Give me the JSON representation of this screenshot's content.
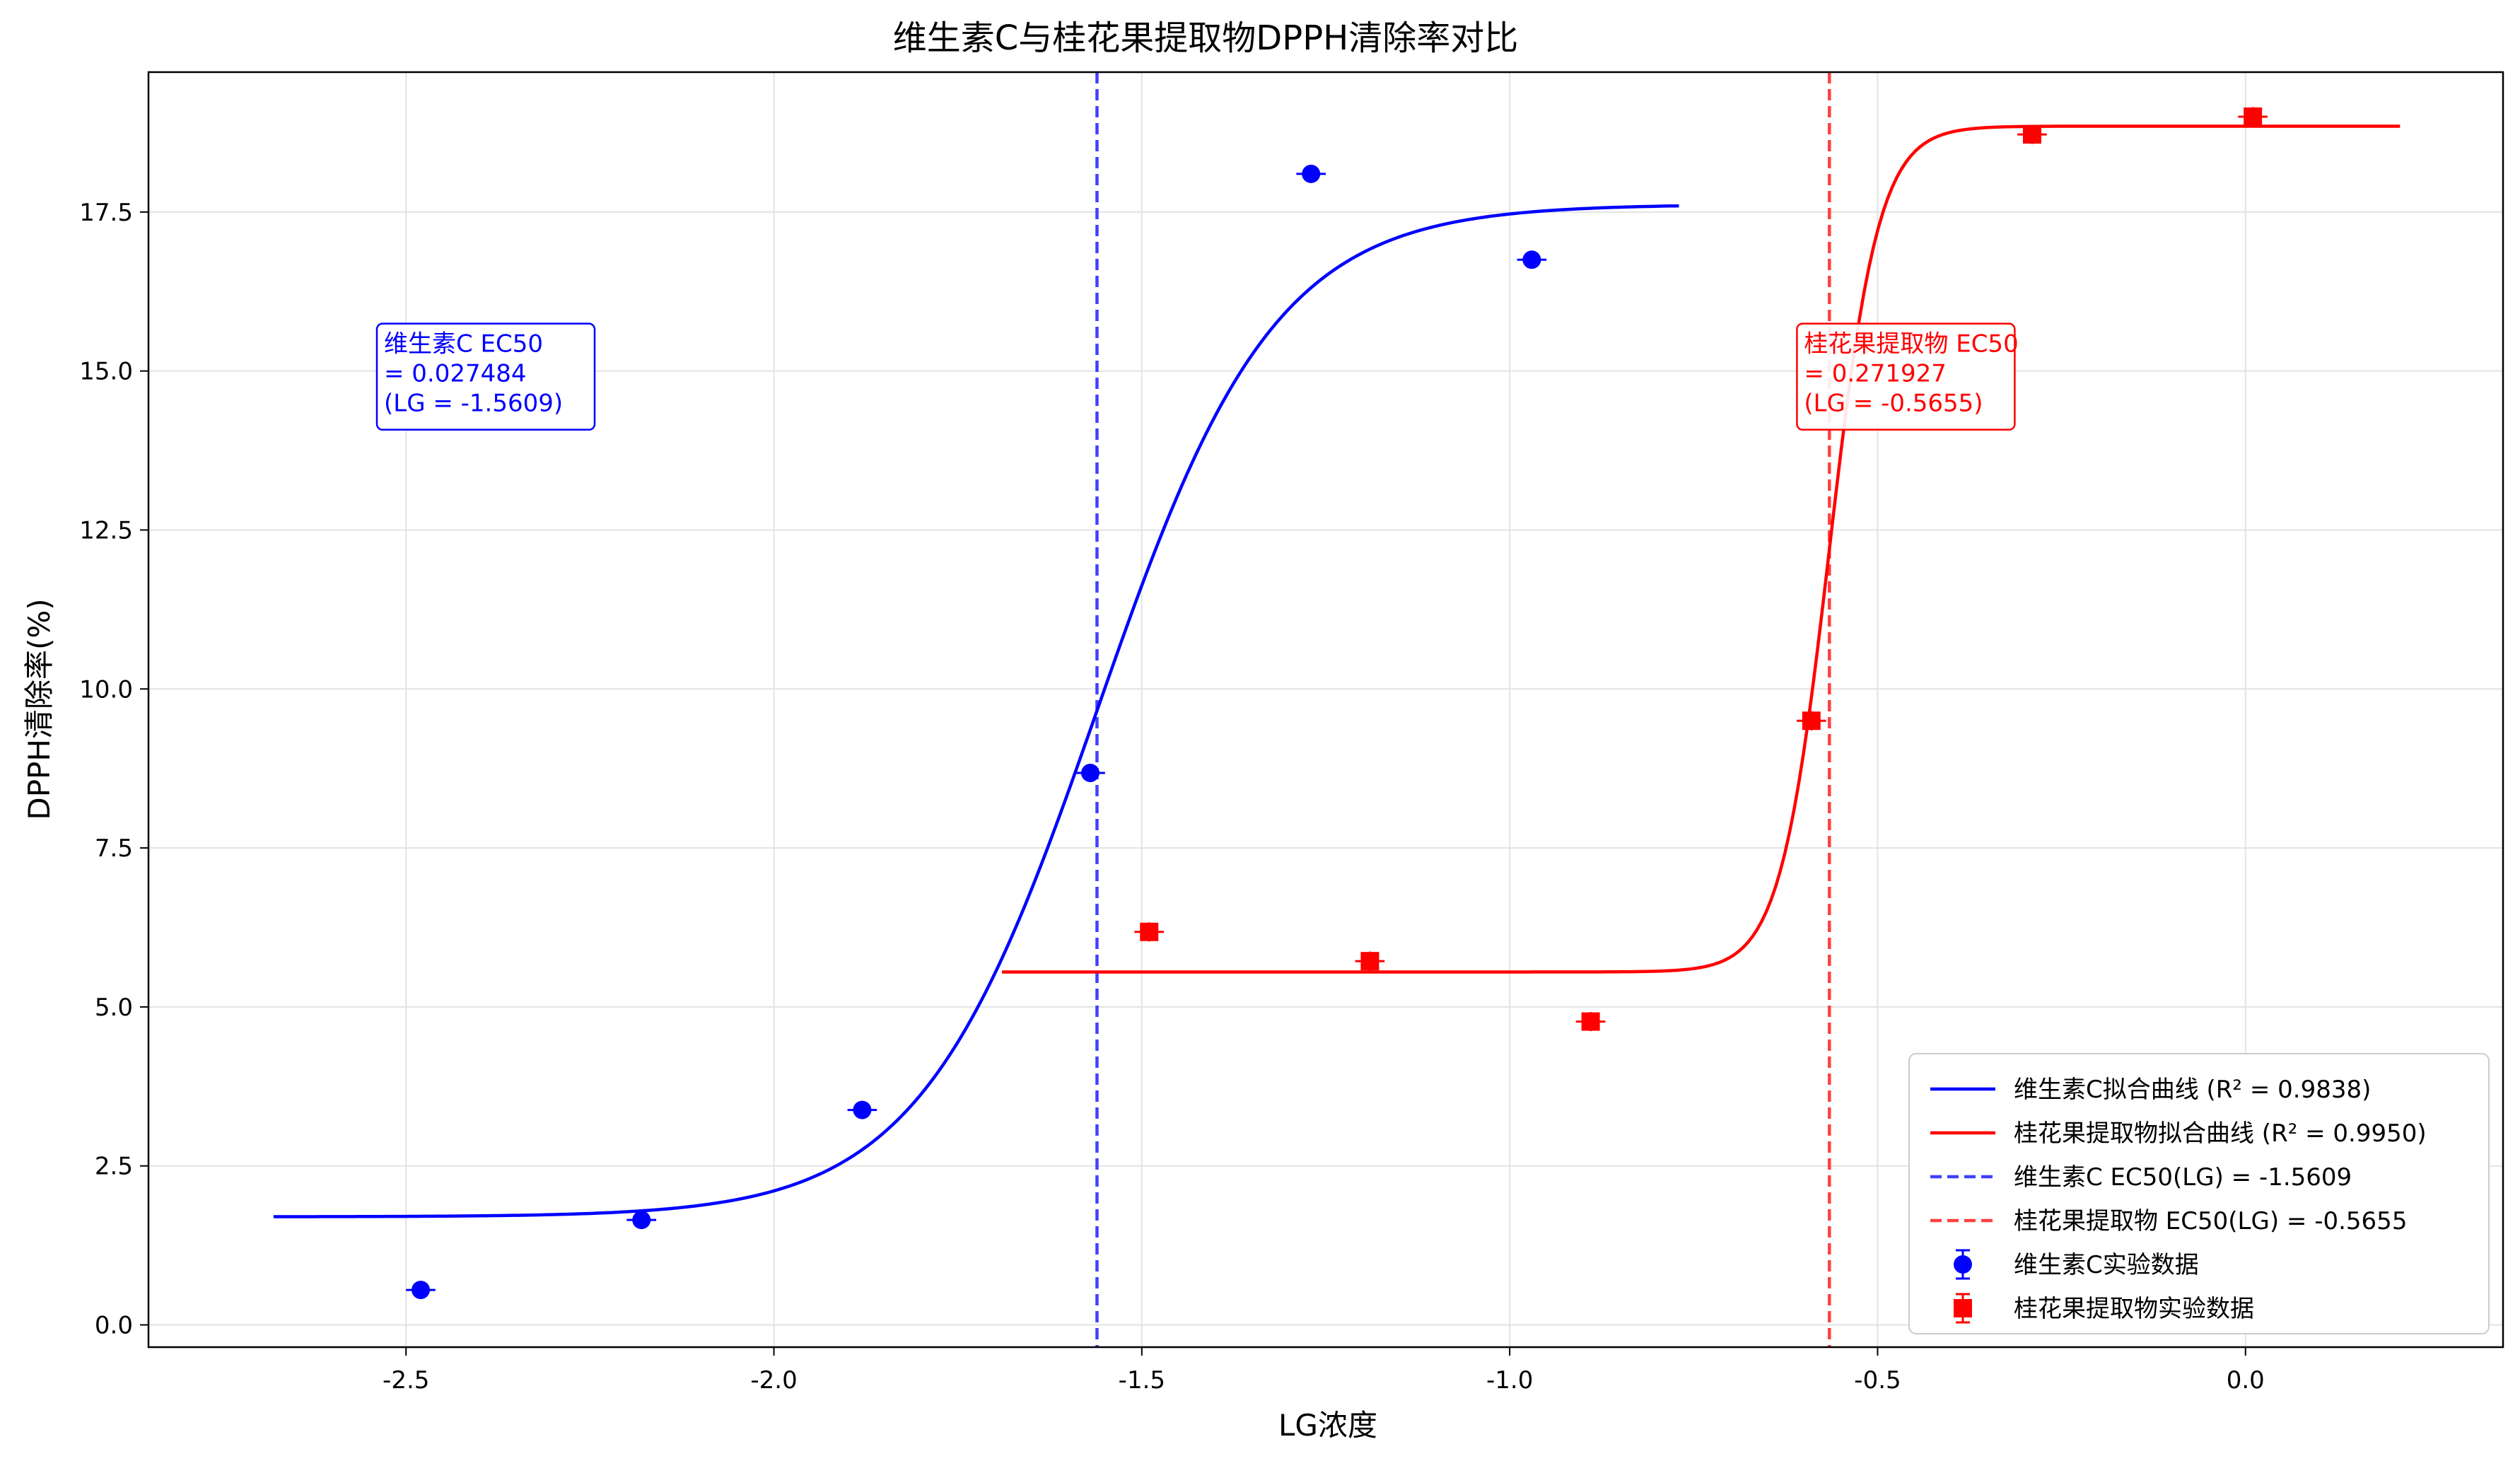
{
  "chart_data": {
    "type": "scatter",
    "title": "维生素C与桂花果提取物DPPH清除率对比",
    "xlabel": "LG浓度",
    "ylabel": "DPPH清除率(%)",
    "xlim": [
      -2.85,
      0.35
    ],
    "ylim": [
      -0.35,
      19.7
    ],
    "xticks": [
      -2.5,
      -2.0,
      -1.5,
      -1.0,
      -0.5,
      0.0
    ],
    "xtick_labels": [
      "-2.5",
      "-2.0",
      "-1.5",
      "-1.0",
      "-0.5",
      "0.0"
    ],
    "yticks": [
      0.0,
      2.5,
      5.0,
      7.5,
      10.0,
      12.5,
      15.0,
      17.5
    ],
    "ytick_labels": [
      "0.0",
      "2.5",
      "5.0",
      "7.5",
      "10.0",
      "12.5",
      "15.0",
      "17.5"
    ],
    "grid": true,
    "legend_position": "lower-right",
    "series": [
      {
        "name": "维生素C实验数据",
        "kind": "points",
        "marker": "circle",
        "color": "#0000ff",
        "x": [
          -2.48,
          -2.18,
          -1.88,
          -1.57,
          -1.27,
          -0.97
        ],
        "y": [
          0.55,
          1.65,
          3.38,
          8.68,
          18.1,
          16.75
        ],
        "xerr": 0.02,
        "yerr": 0.1
      },
      {
        "name": "桂花果提取物实验数据",
        "kind": "points",
        "marker": "square",
        "color": "#ff0000",
        "x": [
          -1.49,
          -1.19,
          -0.89,
          -0.59,
          -0.29,
          0.01
        ],
        "y": [
          6.18,
          5.72,
          4.77,
          9.5,
          18.72,
          19.0
        ],
        "xerr": 0.02,
        "yerr": 0.15
      },
      {
        "name": "维生素C拟合曲线 (R² = 0.9838)",
        "kind": "curve",
        "color": "#0000ff",
        "x_range": [
          -2.68,
          -0.77
        ],
        "bottom": 1.7,
        "top": 17.62,
        "log_ec50": -1.5609,
        "hill_slope": 3.6
      },
      {
        "name": "桂花果提取物拟合曲线 (R² = 0.9950)",
        "kind": "curve",
        "color": "#ff0000",
        "x_range": [
          -1.69,
          0.21
        ],
        "bottom": 5.55,
        "top": 18.85,
        "log_ec50": -0.5655,
        "hill_slope": 13
      },
      {
        "name": "维生素C EC50(LG) = -1.5609",
        "kind": "vline",
        "x": -1.5609,
        "color": "#4040ff"
      },
      {
        "name": "桂花果提取物 EC50(LG) = -0.5655",
        "kind": "vline",
        "x": -0.5655,
        "color": "#ff4040"
      }
    ],
    "annotations": [
      {
        "name": "vitc-ec50-annotation",
        "lines": [
          "维生素C EC50",
          "= 0.027484",
          "(LG = -1.5609)"
        ],
        "color": "#0000ff",
        "x": -2.53,
        "y": 15.3
      },
      {
        "name": "osmanthus-ec50-annotation",
        "lines": [
          "桂花果提取物 EC50",
          "= 0.271927",
          "(LG = -0.5655)"
        ],
        "color": "#ff0000",
        "x": -0.6,
        "y": 15.3
      }
    ],
    "legend_order": [
      "维生素C拟合曲线 (R² = 0.9838)",
      "桂花果提取物拟合曲线 (R² = 0.9950)",
      "维生素C EC50(LG) = -1.5609",
      "桂花果提取物 EC50(LG) = -0.5655",
      "维生素C实验数据",
      "桂花果提取物实验数据"
    ]
  }
}
